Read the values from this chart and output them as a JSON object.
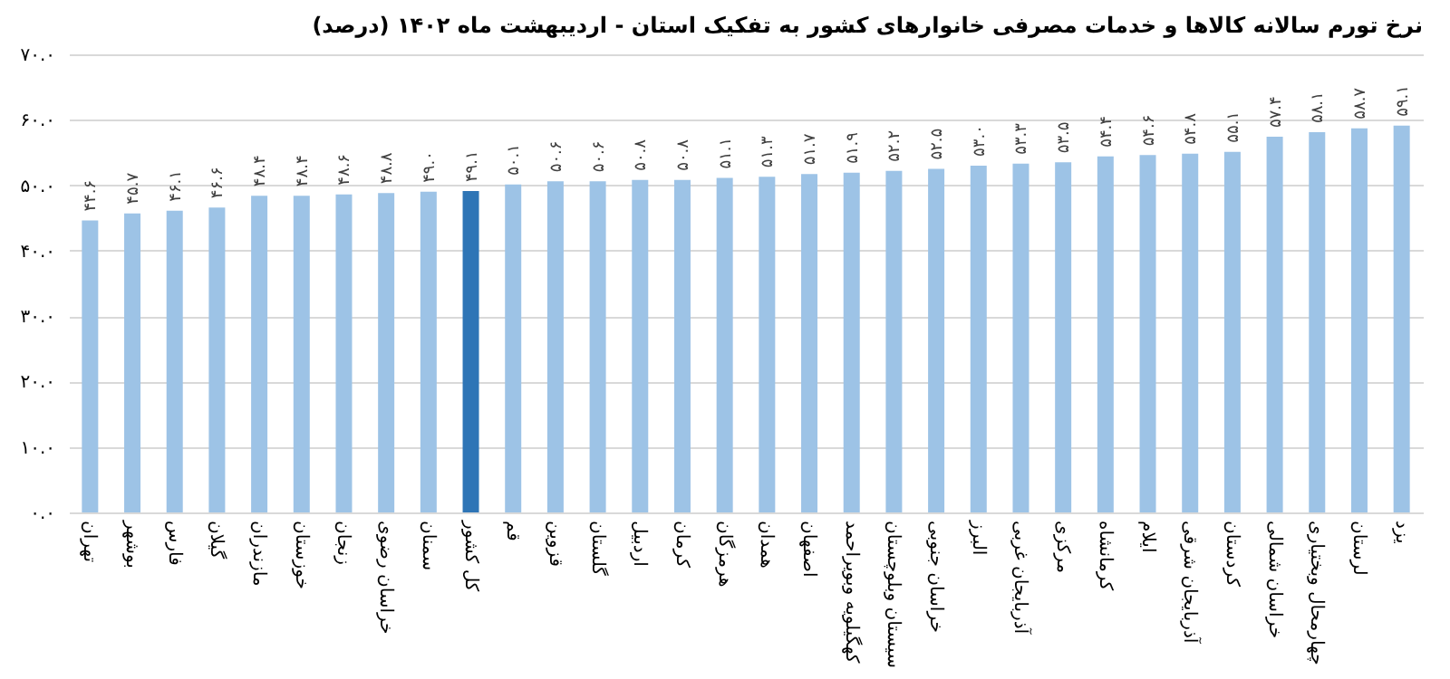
{
  "chart_data": {
    "type": "bar",
    "title": "نرخ تورم سالانه کالاها و خدمات مصرفی خانوارهای کشور به تفکیک استان - اردیبهشت ماه ۱۴۰۲ (درصد)",
    "categories": [
      "تهران",
      "بوشهر",
      "فارس",
      "گیلان",
      "مازندران",
      "خوزستان",
      "زنجان",
      "خراسان رضوی",
      "سمنان",
      "کل کشور",
      "قم",
      "قزوین",
      "گلستان",
      "اردبیل",
      "کرمان",
      "هرمزگان",
      "همدان",
      "اصفهان",
      "کهگیلویه وبویراحمد",
      "سیستان وبلوچستان",
      "خراسان جنوبی",
      "البرز",
      "آذربایجان غربی",
      "مرکزی",
      "کرمانشاه",
      "ایلام",
      "آذربایجان شرقی",
      "کردستان",
      "خراسان شمالی",
      "چهارمحال وبختیاری",
      "لرستان",
      "یزد"
    ],
    "values": [
      44.6,
      45.7,
      46.1,
      46.6,
      48.4,
      48.4,
      48.6,
      48.8,
      49.0,
      49.1,
      50.1,
      50.6,
      50.6,
      50.8,
      50.8,
      51.1,
      51.3,
      51.7,
      51.9,
      52.2,
      52.5,
      53.0,
      53.3,
      53.5,
      54.4,
      54.6,
      54.8,
      55.1,
      57.4,
      58.1,
      58.7,
      59.1
    ],
    "value_labels": [
      "۴۴.۶",
      "۴۵.۷",
      "۴۶.۱",
      "۴۶.۶",
      "۴۸.۴",
      "۴۸.۴",
      "۴۸.۶",
      "۴۸.۸",
      "۴۹.۰",
      "۴۹.۱",
      "۵۰.۱",
      "۵۰.۶",
      "۵۰.۶",
      "۵۰.۸",
      "۵۰.۸",
      "۵۱.۱",
      "۵۱.۳",
      "۵۱.۷",
      "۵۱.۹",
      "۵۲.۲",
      "۵۲.۵",
      "۵۳.۰",
      "۵۳.۳",
      "۵۳.۵",
      "۵۴.۴",
      "۵۴.۶",
      "۵۴.۸",
      "۵۵.۱",
      "۵۷.۴",
      "۵۸.۱",
      "۵۸.۷",
      "۵۹.۱"
    ],
    "colors": [
      "#9dc3e6",
      "#9dc3e6",
      "#9dc3e6",
      "#9dc3e6",
      "#9dc3e6",
      "#9dc3e6",
      "#9dc3e6",
      "#9dc3e6",
      "#9dc3e6",
      "#2e75b6",
      "#9dc3e6",
      "#9dc3e6",
      "#9dc3e6",
      "#9dc3e6",
      "#9dc3e6",
      "#9dc3e6",
      "#9dc3e6",
      "#9dc3e6",
      "#9dc3e6",
      "#9dc3e6",
      "#9dc3e6",
      "#9dc3e6",
      "#9dc3e6",
      "#9dc3e6",
      "#9dc3e6",
      "#9dc3e6",
      "#9dc3e6",
      "#9dc3e6",
      "#9dc3e6",
      "#9dc3e6",
      "#9dc3e6",
      "#9dc3e6"
    ],
    "ylim": [
      0,
      70
    ],
    "yticks": [
      {
        "value": 0,
        "label": "۰.۰"
      },
      {
        "value": 10,
        "label": "۱۰.۰"
      },
      {
        "value": 20,
        "label": "۲۰.۰"
      },
      {
        "value": 30,
        "label": "۳۰.۰"
      },
      {
        "value": 40,
        "label": "۴۰.۰"
      },
      {
        "value": 50,
        "label": "۵۰.۰"
      },
      {
        "value": 60,
        "label": "۶۰.۰"
      },
      {
        "value": 70,
        "label": "۷۰.۰"
      }
    ],
    "grid": "y",
    "legend": false
  }
}
